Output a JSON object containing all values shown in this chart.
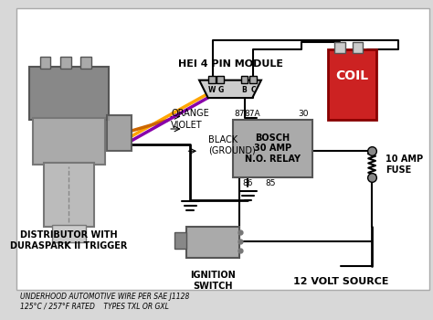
{
  "bg_color": "#d8d8d8",
  "title": "HEI 4 PIN MODULE",
  "distributor_label": "DISTRIBUTOR WITH\nDURASPARK II TRIGGER",
  "coil_label": "COIL",
  "relay_label": "BOSCH\n30 AMP\nN.O. RELAY",
  "ignition_label": "IGNITION\nSWITCH",
  "fuse_label": "10 AMP\nFUSE",
  "voltage_label": "12 VOLT SOURCE",
  "bottom_label": "UNDERHOOD AUTOMOTIVE WIRE PER SAE J1128\n125°C / 257°F RATED    TYPES TXL OR GXL",
  "orange_label": "ORANGE",
  "violet_label": "VIOLET",
  "black_label": "BLACK\n(GROUND)",
  "pin_labels": [
    "W",
    "G",
    "B",
    "C"
  ],
  "relay_pins": [
    "87",
    "87A",
    "30",
    "86",
    "85"
  ]
}
